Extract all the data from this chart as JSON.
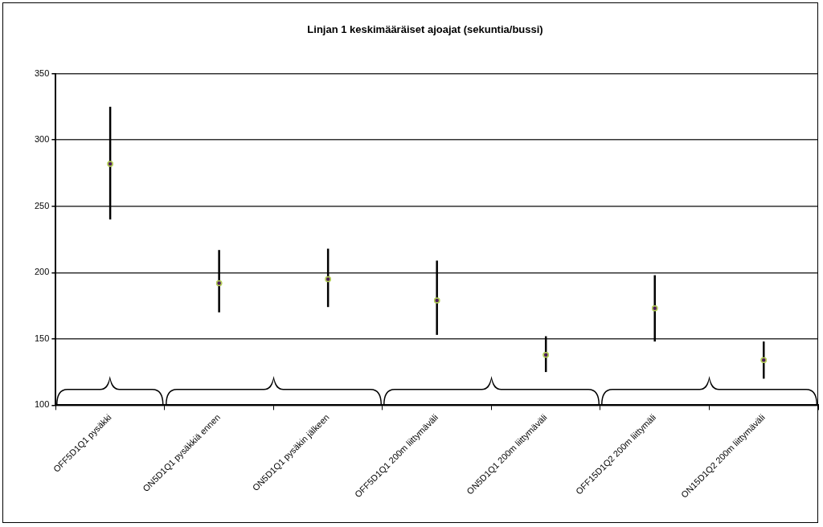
{
  "chart_data": {
    "type": "scatter",
    "title": "Linjan 1 keskimääräiset ajoajat (sekuntia/bussi)",
    "categories": [
      "OFF5D1Q1 pysäkki",
      "ON5D1Q1 pysäkkiä ennen",
      "ON5D1Q1 pysäkin jälkeen",
      "OFF5D1Q1 200m liittymäväli",
      "ON5D1Q1 200m liittymäväli",
      "OFF15D1Q2 200m liittymäli",
      "ON15D1Q2 200m liittymäväli"
    ],
    "values": [
      282,
      192,
      195,
      179,
      138,
      173,
      134
    ],
    "errors": [
      [
        240,
        325
      ],
      [
        170,
        217
      ],
      [
        174,
        218
      ],
      [
        153,
        209
      ],
      [
        125,
        152
      ],
      [
        148,
        198
      ],
      [
        120,
        148
      ]
    ],
    "color": "#4b1a5a",
    "ylim": [
      100,
      350
    ],
    "yticks": [
      100,
      150,
      200,
      250,
      300,
      350
    ],
    "grid": "y",
    "legend": false,
    "marker": "circle"
  }
}
